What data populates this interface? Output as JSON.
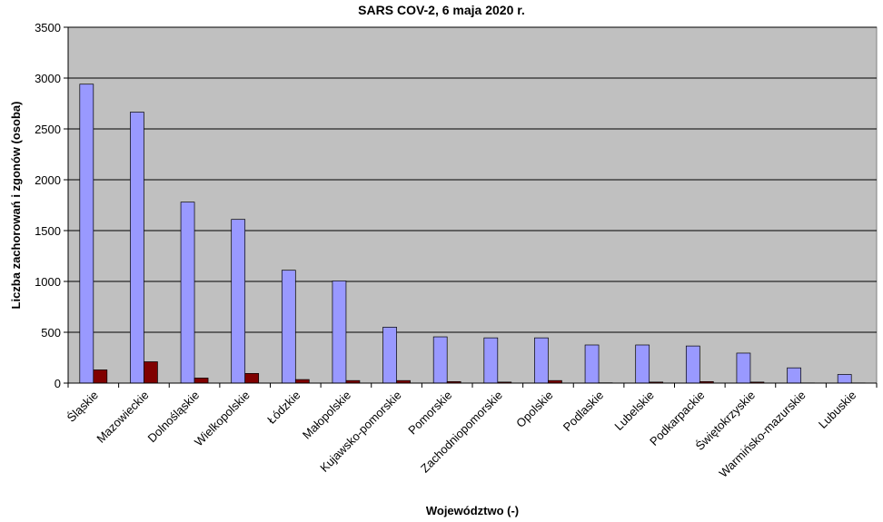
{
  "chart_data": {
    "type": "bar",
    "title": "SARS COV-2, 6 maja 2020 r.",
    "xlabel": "Województwo (-)",
    "ylabel": "Liczba zachorowań i zgonów (osoba)",
    "ylim": [
      0,
      3500
    ],
    "yticks": [
      0,
      500,
      1000,
      1500,
      2000,
      2500,
      3000,
      3500
    ],
    "grid": true,
    "legend": "none",
    "categories": [
      "Śląskie",
      "Mazowieckie",
      "Dolnośląskie",
      "Wielkopolskie",
      "Łódzkie",
      "Małopolskie",
      "Kujawsko-pomorskie",
      "Pomorskie",
      "Zachodniopomorskie",
      "Opolskie",
      "Podlaskie",
      "Lubelskie",
      "Podkarpackie",
      "Świętokrzyskie",
      "Warmińsko-mazurskie",
      "Lubuskie"
    ],
    "series": [
      {
        "color": "#9999ff",
        "values": [
          2940,
          2665,
          1780,
          1610,
          1110,
          1005,
          550,
          455,
          445,
          445,
          375,
          375,
          365,
          295,
          150,
          85
        ]
      },
      {
        "color": "#800000",
        "values": [
          130,
          210,
          50,
          95,
          35,
          25,
          25,
          15,
          10,
          25,
          3,
          10,
          15,
          10,
          2,
          2
        ]
      }
    ],
    "plot_bg": "#c0c0c0"
  }
}
